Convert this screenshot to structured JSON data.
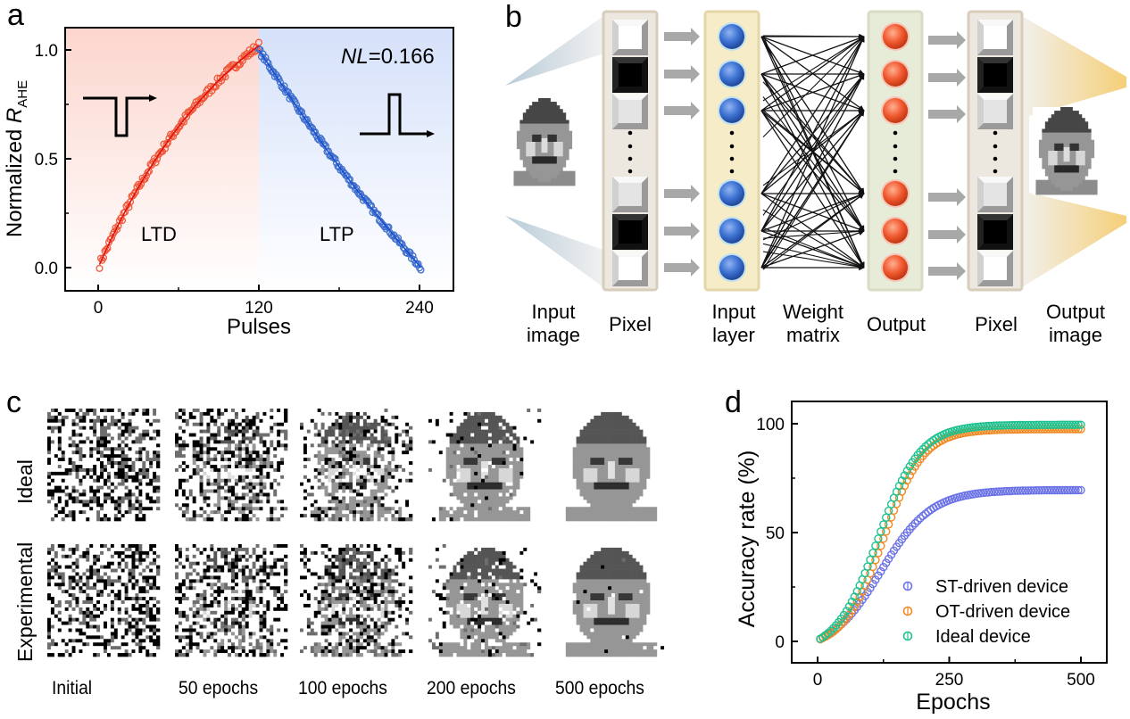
{
  "panels": {
    "a": {
      "letter": "a"
    },
    "b": {
      "letter": "b"
    },
    "c": {
      "letter": "c"
    },
    "d": {
      "letter": "d"
    }
  },
  "chart_data": [
    {
      "id": "a",
      "type": "scatter",
      "title": "",
      "xlabel": "Pulses",
      "ylabel_main": "Normalized ",
      "ylabel_italic": "R",
      "ylabel_sub": "AHE",
      "xlim": [
        -20,
        255
      ],
      "ylim": [
        -0.1,
        1.1
      ],
      "xticks": [
        0,
        120,
        240
      ],
      "xtick_labels": [
        "0",
        "120",
        "240"
      ],
      "yticks": [
        0.0,
        0.5,
        1.0
      ],
      "ytick_labels": [
        "0.0",
        "0.5",
        "1.0"
      ],
      "annotation_nl_italic": "NL",
      "annotation_nl_value": "=0.166",
      "region_labels": [
        "LTD",
        "LTP"
      ],
      "region_colors": {
        "LTD": "#fcd9d2",
        "LTP": "#d6e2fa"
      },
      "series": [
        {
          "name": "LTD",
          "color": "#f0593a",
          "fit_color": "#e01010",
          "x_range": [
            1,
            120
          ],
          "y_start": 0.0,
          "y_end": 1.02,
          "curvature": 0.166
        },
        {
          "name": "LTP",
          "color": "#3f6fcc",
          "fit_color": "#1a4fd0",
          "x_range": [
            120,
            241
          ],
          "y_start": 1.0,
          "y_end": 0.0,
          "curvature": -0.05
        }
      ]
    },
    {
      "id": "d",
      "type": "scatter",
      "title": "",
      "xlabel": "Epochs",
      "ylabel": "Accuracy rate (%)",
      "xlim": [
        -30,
        550
      ],
      "ylim": [
        -10,
        110
      ],
      "xticks": [
        0,
        250,
        500
      ],
      "xtick_labels": [
        "0",
        "250",
        "500"
      ],
      "yticks": [
        0,
        50,
        100
      ],
      "ytick_labels": [
        "0",
        "50",
        "100"
      ],
      "legend_position": "bottom-right",
      "series": [
        {
          "name": "ST-driven device",
          "color": "#6b72e6",
          "final": 69.5,
          "midpoint": 120,
          "steep": 48,
          "sample_values": {
            "0": 0.5,
            "100": 28,
            "150": 42,
            "200": 53,
            "250": 59,
            "300": 63,
            "400": 67,
            "500": 69.5
          }
        },
        {
          "name": "OT-driven device",
          "color": "#f08a24",
          "final": 97.5,
          "midpoint": 125,
          "steep": 38,
          "sample_values": {
            "0": 0.5,
            "100": 33,
            "150": 62,
            "200": 82,
            "250": 91,
            "300": 95,
            "400": 97,
            "500": 97.5
          }
        },
        {
          "name": "Ideal device",
          "color": "#1fc190",
          "final": 99.5,
          "midpoint": 115,
          "steep": 40,
          "sample_values": {
            "0": 0.5,
            "100": 40,
            "150": 70,
            "200": 87,
            "250": 94,
            "300": 97,
            "400": 99,
            "500": 99.5
          }
        }
      ]
    }
  ],
  "diagram_b": {
    "labels": [
      {
        "id": "input-image",
        "line1": "Input",
        "line2": "image"
      },
      {
        "id": "pixel-in",
        "line1": "Pixel",
        "line2": ""
      },
      {
        "id": "input-layer",
        "line1": "Input",
        "line2": "layer"
      },
      {
        "id": "weight-matrix",
        "line1": "Weight",
        "line2": "matrix"
      },
      {
        "id": "output",
        "line1": "Output",
        "line2": ""
      },
      {
        "id": "pixel-out",
        "line1": "Pixel",
        "line2": ""
      },
      {
        "id": "output-image",
        "line1": "Output",
        "line2": "image"
      }
    ],
    "pixel_states": [
      "white",
      "black",
      "light",
      "light",
      "black",
      "white"
    ],
    "input_node_color": "#3a6fd0",
    "output_node_color": "#f0582e"
  },
  "panel_c": {
    "row_labels": [
      "Ideal",
      "Experimental"
    ],
    "column_labels": [
      "Initial",
      "50 epochs",
      "100 epochs",
      "200 epochs",
      "500 epochs"
    ],
    "noise_levels": {
      "Ideal": [
        1.0,
        0.75,
        0.5,
        0.12,
        0.0
      ],
      "Experimental": [
        1.0,
        0.85,
        0.6,
        0.22,
        0.02
      ]
    }
  }
}
